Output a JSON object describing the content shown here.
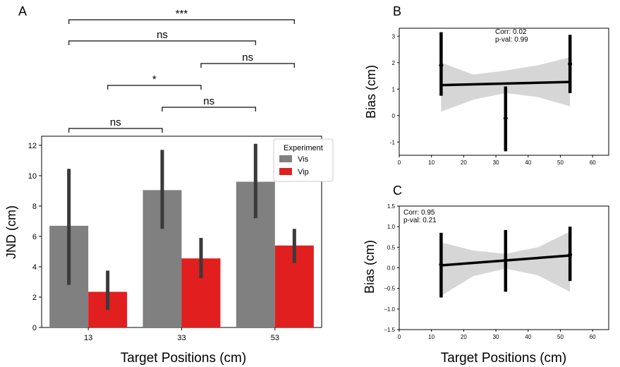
{
  "xlabel": "Target Positions (cm)",
  "chart_data": [
    {
      "panel": "A",
      "type": "bar",
      "ylabel": "JND (cm)",
      "categories": [
        "13",
        "33",
        "53"
      ],
      "ylim": [
        0,
        12.6
      ],
      "yticks": [
        "0",
        "2",
        "4",
        "6",
        "8",
        "10",
        "12"
      ],
      "legend": {
        "title": "Experiment",
        "position": "top-right"
      },
      "series": [
        {
          "name": "Vis",
          "color": "#808080",
          "values": [
            6.7,
            9.05,
            9.6
          ],
          "ci_low": [
            2.8,
            6.5,
            7.2
          ],
          "ci_high": [
            10.45,
            11.7,
            12.1
          ]
        },
        {
          "name": "Vip",
          "color": "#e11f1f",
          "values": [
            2.35,
            4.55,
            5.4
          ],
          "ci_low": [
            1.15,
            3.25,
            4.25
          ],
          "ci_high": [
            3.75,
            5.9,
            6.5
          ]
        }
      ],
      "significance": [
        {
          "label": "***",
          "from": "Vis 13",
          "to": "Vip 53"
        },
        {
          "label": "ns",
          "from": "Vis 13",
          "to": "Vis 53"
        },
        {
          "label": "ns",
          "from": "Vip 33",
          "to": "Vip 53"
        },
        {
          "label": "*",
          "from": "Vip 13",
          "to": "Vip 33"
        },
        {
          "label": "ns",
          "from": "Vis 33",
          "to": "Vis 53"
        },
        {
          "label": "ns",
          "from": "Vis 13",
          "to": "Vis 33"
        }
      ]
    },
    {
      "panel": "B",
      "type": "scatter",
      "ylabel": "Bias (cm)",
      "annotation": [
        "Corr: 0.02",
        "p-val: 0.99"
      ],
      "xlim": [
        0,
        65
      ],
      "xticks": [
        "0",
        "10",
        "20",
        "30",
        "40",
        "50",
        "60"
      ],
      "ylim": [
        -1.35,
        3.2
      ],
      "yticks": [
        "-1",
        "0",
        "1",
        "2",
        "3"
      ],
      "points": [
        {
          "x": 13,
          "y": 1.9,
          "ci_low": 0.75,
          "ci_high": 3.15
        },
        {
          "x": 33,
          "y": -0.1,
          "ci_low": -1.35,
          "ci_high": 1.1
        },
        {
          "x": 53,
          "y": 1.95,
          "ci_low": 0.85,
          "ci_high": 3.05
        }
      ],
      "fit": {
        "y_at_13": 1.15,
        "y_at_53": 1.27
      },
      "band": {
        "x": [
          13,
          23,
          33,
          43,
          53
        ],
        "low": [
          0.15,
          0.6,
          0.85,
          0.7,
          0.35
        ],
        "high": [
          2.0,
          1.55,
          1.7,
          1.9,
          2.2
        ]
      }
    },
    {
      "panel": "C",
      "type": "scatter",
      "ylabel": "Bias (cm)",
      "annotation": [
        "Corr: 0.95",
        "p-val: 0.21"
      ],
      "xlim": [
        0,
        65
      ],
      "xticks": [
        "0",
        "10",
        "20",
        "30",
        "40",
        "50",
        "60"
      ],
      "ylim": [
        -1.5,
        1.5
      ],
      "yticks": [
        "−1.5",
        "−1.0",
        "−0.5",
        "0.0",
        "0.5",
        "1.0",
        "1.5"
      ],
      "points": [
        {
          "x": 13,
          "y": 0.08,
          "ci_low": -0.72,
          "ci_high": 0.85
        },
        {
          "x": 33,
          "y": 0.18,
          "ci_low": -0.58,
          "ci_high": 0.92
        },
        {
          "x": 53,
          "y": 0.32,
          "ci_low": -0.32,
          "ci_high": 1.0
        }
      ],
      "fit": {
        "y_at_13": 0.06,
        "y_at_53": 0.3
      },
      "band": {
        "x": [
          13,
          23,
          33,
          43,
          53
        ],
        "low": [
          -0.68,
          -0.2,
          -0.02,
          -0.18,
          -0.58
        ],
        "high": [
          0.62,
          0.42,
          0.34,
          0.5,
          0.88
        ]
      }
    }
  ]
}
